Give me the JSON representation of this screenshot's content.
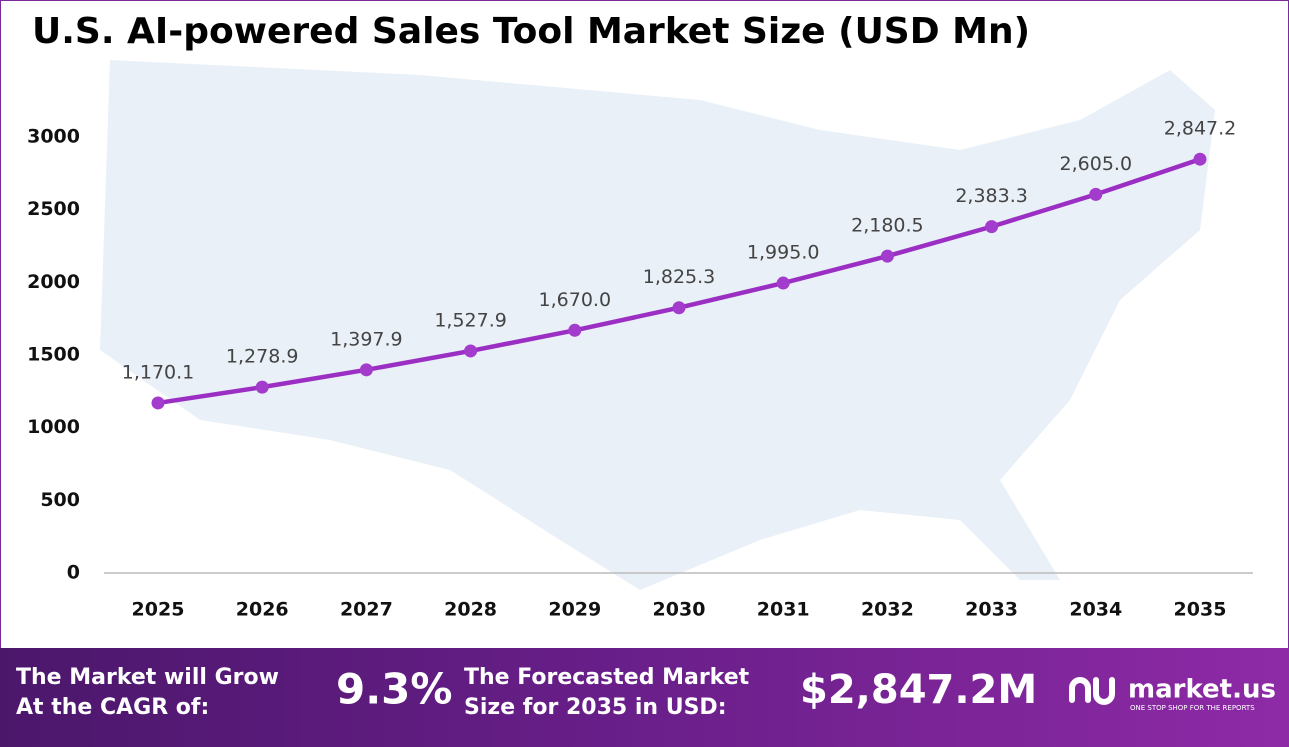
{
  "chart_data": {
    "type": "line",
    "title": "U.S. AI-powered Sales Tool Market Size (USD Mn)",
    "categories": [
      "2025",
      "2026",
      "2027",
      "2028",
      "2029",
      "2030",
      "2031",
      "2032",
      "2033",
      "2034",
      "2035"
    ],
    "values": [
      1170.1,
      1278.9,
      1397.9,
      1527.9,
      1670.0,
      1825.3,
      1995.0,
      2180.5,
      2383.3,
      2605.0,
      2847.2
    ],
    "value_labels": [
      "1,170.1",
      "1,278.9",
      "1,397.9",
      "1,527.9",
      "1,670.0",
      "1,825.3",
      "1,995.0",
      "2,180.5",
      "2,383.3",
      "2,605.0",
      "2,847.2"
    ],
    "color": "#9b2fc4",
    "ylim": [
      0,
      3000
    ],
    "yticks": [
      0,
      500,
      1000,
      1500,
      2000,
      2500,
      3000
    ],
    "grid": false
  },
  "footer": {
    "cagr_text": [
      "The Market will Grow",
      "At the CAGR of:"
    ],
    "cagr_value": "9.3%",
    "forecast_text": [
      "The Forecasted Market",
      "Size for 2035 in USD:"
    ],
    "forecast_value": "$2,847.2M",
    "brand": "market.us",
    "tagline": "ONE STOP SHOP FOR THE REPORTS"
  }
}
